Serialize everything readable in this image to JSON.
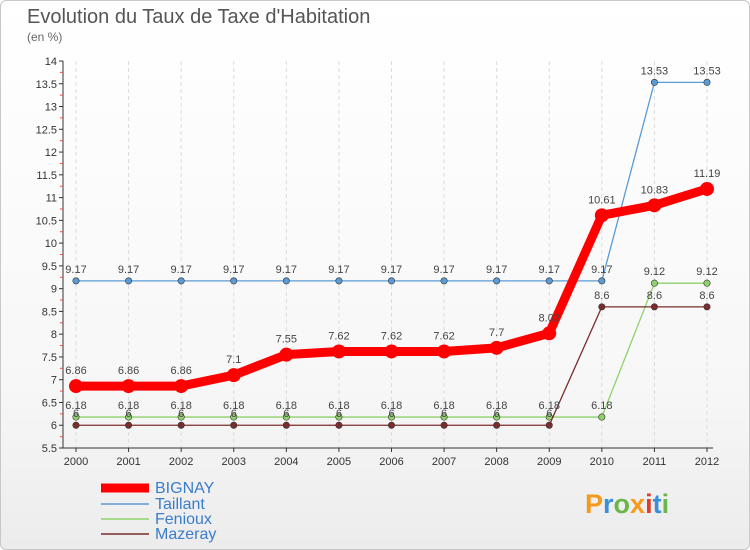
{
  "title": "Evolution du Taux de Taxe d'Habitation",
  "subtitle": "(en %)",
  "logo": {
    "text": "Proxiti",
    "letter_colors": [
      "#f59a1c",
      "#3a8fd6",
      "#6ab64a",
      "#f59a1c",
      "#e03a2a",
      "#3a8fd6",
      "#6ab64a"
    ]
  },
  "chart_data": {
    "type": "line",
    "title": "Evolution du Taux de Taxe d'Habitation",
    "ylabel": "(en %)",
    "x": [
      "2000",
      "2001",
      "2002",
      "2003",
      "2004",
      "2005",
      "2006",
      "2007",
      "2008",
      "2009",
      "2010",
      "2011",
      "2012"
    ],
    "ylim": [
      5.5,
      14
    ],
    "yticks": [
      "5.5",
      "6",
      "6.5",
      "7",
      "7.5",
      "8",
      "8.5",
      "9",
      "9.5",
      "10",
      "10.5",
      "11",
      "11.5",
      "12",
      "12.5",
      "13",
      "13.5",
      "14"
    ],
    "grid": "vertical",
    "legend": "bottom-left",
    "series": [
      {
        "name": "BIGNAY",
        "color": "#ff0000",
        "bold": true,
        "values": [
          6.86,
          6.86,
          6.86,
          7.1,
          7.55,
          7.62,
          7.62,
          7.62,
          7.7,
          8.02,
          10.61,
          10.83,
          11.19
        ],
        "labels": [
          "6.86",
          "6.86",
          "6.86",
          "7.1",
          "7.55",
          "7.62",
          "7.62",
          "7.62",
          "7.7",
          "8.02",
          "10.61",
          "10.83",
          "11.19"
        ]
      },
      {
        "name": "Taillant",
        "color": "#5b9bd5",
        "bold": false,
        "values": [
          9.17,
          9.17,
          9.17,
          9.17,
          9.17,
          9.17,
          9.17,
          9.17,
          9.17,
          9.17,
          9.17,
          13.53,
          13.53
        ],
        "labels": [
          "9.17",
          "9.17",
          "9.17",
          "9.17",
          "9.17",
          "9.17",
          "9.17",
          "9.17",
          "9.17",
          "9.17",
          "9.17",
          "13.53",
          "13.53"
        ]
      },
      {
        "name": "Fenioux",
        "color": "#8fd16a",
        "bold": false,
        "values": [
          6.18,
          6.18,
          6.18,
          6.18,
          6.18,
          6.18,
          6.18,
          6.18,
          6.18,
          6.18,
          6.18,
          9.12,
          9.12
        ],
        "labels": [
          "6.18",
          "6.18",
          "6.18",
          "6.18",
          "6.18",
          "6.18",
          "6.18",
          "6.18",
          "6.18",
          "6.18",
          "6.18",
          "9.12",
          "9.12"
        ]
      },
      {
        "name": "Mazeray",
        "color": "#7b2c2c",
        "bold": false,
        "values": [
          6,
          6,
          6,
          6,
          6,
          6,
          6,
          6,
          6,
          6,
          8.6,
          8.6,
          8.6
        ],
        "labels": [
          "6",
          "6",
          "6",
          "6",
          "6",
          "6",
          "6",
          "6",
          "6",
          "6",
          "8.6",
          "8.6",
          "8.6"
        ]
      }
    ]
  }
}
